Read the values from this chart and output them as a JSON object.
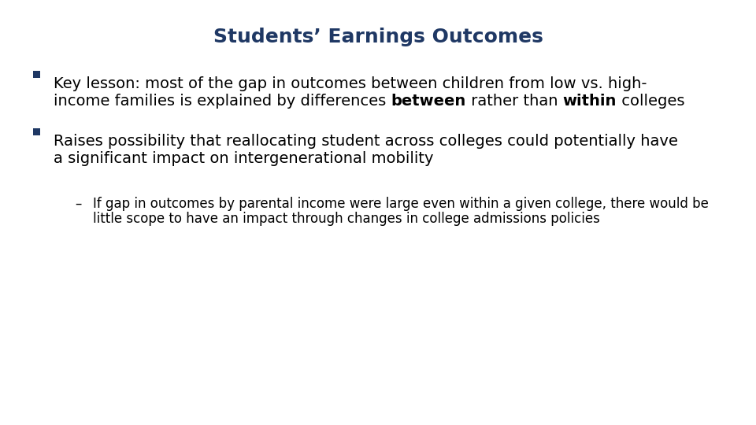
{
  "title": "Students’ Earnings Outcomes",
  "title_color": "#1F3864",
  "title_fontsize": 18,
  "background_color": "#ffffff",
  "bullet1_line1": "Key lesson: most of the gap in outcomes between children from low vs. high-",
  "bullet1_line2_plain_start": "income families is explained by differences ",
  "bullet1_line2_bold": "between",
  "bullet1_line2_plain_mid": " rather than ",
  "bullet1_line2_bold2": "within",
  "bullet1_line2_plain_end": " colleges",
  "bullet2_line1": "Raises possibility that reallocating student across colleges could potentially have",
  "bullet2_line2": "a significant impact on intergenerational mobility",
  "sub_bullet_line1": "If gap in outcomes by parental income were large even within a given college, there would be",
  "sub_bullet_line2": "little scope to have an impact through changes in college admissions policies",
  "bullet_color": "#1F3864",
  "text_color": "#000000",
  "body_fontsize": 14,
  "sub_fontsize": 12
}
